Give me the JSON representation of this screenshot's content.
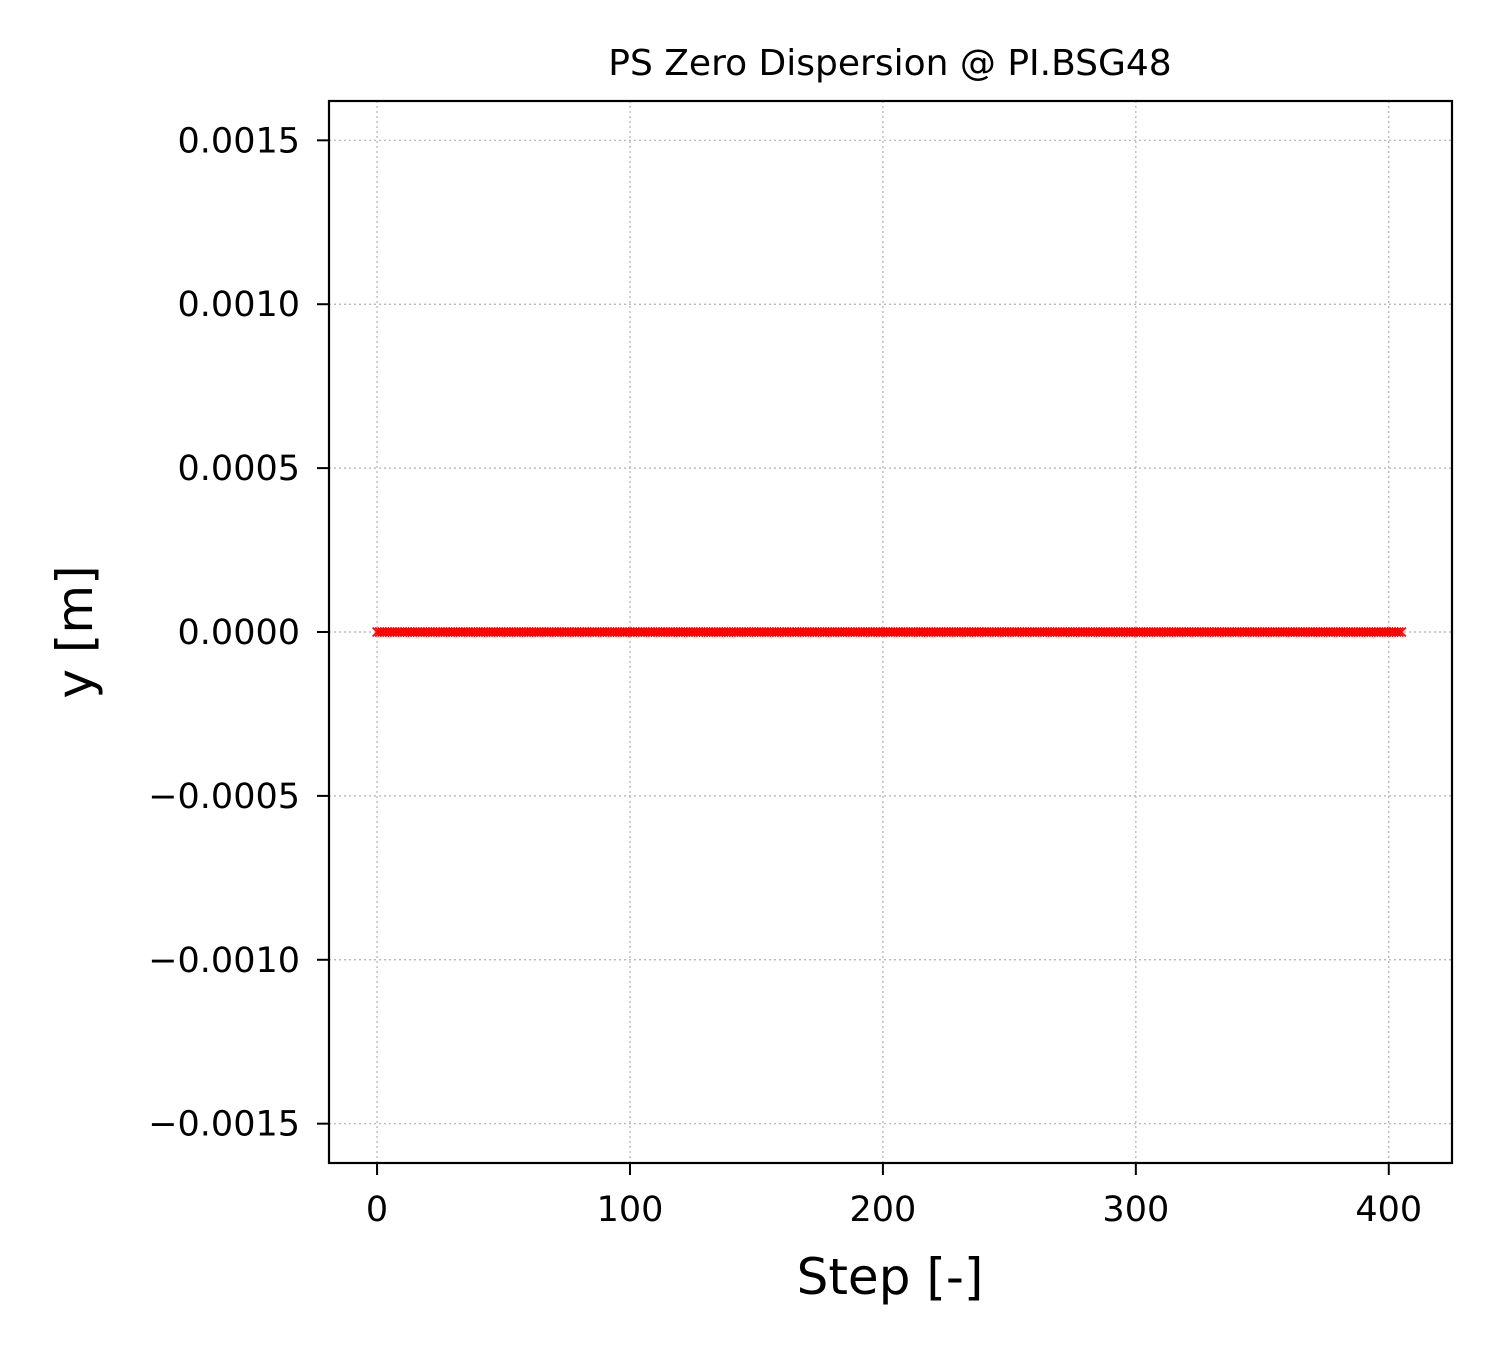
{
  "chart_data": {
    "type": "scatter",
    "title": "PS Zero Dispersion @ PI.BSG48",
    "xlabel": "Step [-]",
    "ylabel": "y [m]",
    "xlim": [
      -19,
      425
    ],
    "ylim": [
      -0.00162,
      0.00162
    ],
    "x_ticks": [
      0,
      100,
      200,
      300,
      400
    ],
    "x_tick_labels": [
      "0",
      "100",
      "200",
      "300",
      "400"
    ],
    "y_ticks": [
      0.0015,
      0.001,
      0.0005,
      0,
      -0.0005,
      -0.001,
      -0.0015
    ],
    "y_tick_labels": [
      "0.0015",
      "0.0010",
      "0.0005",
      "0.0000",
      "−0.0005",
      "−0.0010",
      "−0.0015"
    ],
    "grid": true,
    "marker": "x",
    "series": [
      {
        "color": "#ff0000",
        "x_start": 0,
        "x_end": 405,
        "x_step": 1,
        "y_constant": 0
      }
    ]
  }
}
